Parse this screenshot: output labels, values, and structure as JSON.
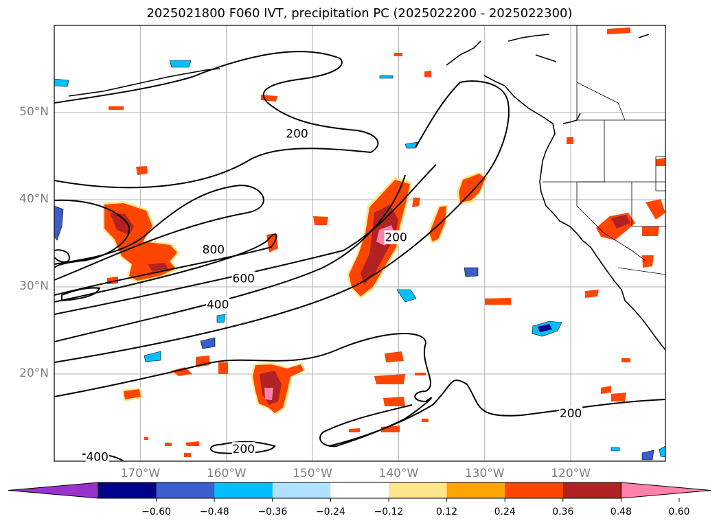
{
  "title": "2025021800 F060 IVT, precipitation PC (2025022200 - 2025022300)",
  "map": {
    "projection": "PlateCarree",
    "lon_range": [
      -180,
      -109
    ],
    "lat_range": [
      10,
      60
    ],
    "gridlines": true,
    "lat_ticks": [
      {
        "label": "50°N",
        "value": 50
      },
      {
        "label": "40°N",
        "value": 40
      },
      {
        "label": "30°N",
        "value": 30
      },
      {
        "label": "20°N",
        "value": 20
      }
    ],
    "lon_ticks": [
      {
        "label": "170°W",
        "value": -170
      },
      {
        "label": "160°W",
        "value": -160
      },
      {
        "label": "150°W",
        "value": -150
      },
      {
        "label": "140°W",
        "value": -140
      },
      {
        "label": "130°W",
        "value": -130
      },
      {
        "label": "120°W",
        "value": -120
      }
    ],
    "ivt_contour_levels": [
      200,
      400,
      600,
      800
    ],
    "contour_labels": [
      {
        "text": "200",
        "lon": -151.8,
        "lat": 47.6
      },
      {
        "text": "800",
        "lon": -161.5,
        "lat": 34.3
      },
      {
        "text": "600",
        "lon": -158.0,
        "lat": 31.0
      },
      {
        "text": "400",
        "lon": -161.0,
        "lat": 28.0
      },
      {
        "text": "200",
        "lon": -140.3,
        "lat": 35.7
      },
      {
        "text": "200",
        "lon": -120.0,
        "lat": 15.5
      },
      {
        "text": "200",
        "lon": -158.0,
        "lat": 11.4
      },
      {
        "text": "400",
        "lon": -175.0,
        "lat": 10.5
      }
    ]
  },
  "colorbar": {
    "colors": [
      "#9932CC",
      "#00008B",
      "#3A5FCD",
      "#00BFFF",
      "#B0E2FF",
      "#FFFFFF",
      "#FFE68A",
      "#FFA500",
      "#FF4500",
      "#B22222",
      "#FF82AB"
    ],
    "tick_labels": [
      "−0.60",
      "−0.48",
      "−0.36",
      "−0.24",
      "−0.12",
      "0.12",
      "0.24",
      "0.36",
      "0.48",
      "0.60"
    ],
    "extend": "both"
  },
  "chart_data": {
    "type": "map",
    "title": "2025021800 F060 IVT, precipitation PC (2025022200 - 2025022300)",
    "field_contoured": "IVT",
    "contour_levels": [
      200,
      400,
      600,
      800
    ],
    "field_shaded": "precipitation PC",
    "shading_levels": [
      -0.6,
      -0.48,
      -0.36,
      -0.24,
      -0.12,
      0.12,
      0.24,
      0.36,
      0.48,
      0.6
    ],
    "xlim": [
      -180,
      -109
    ],
    "ylim": [
      10,
      60
    ]
  }
}
